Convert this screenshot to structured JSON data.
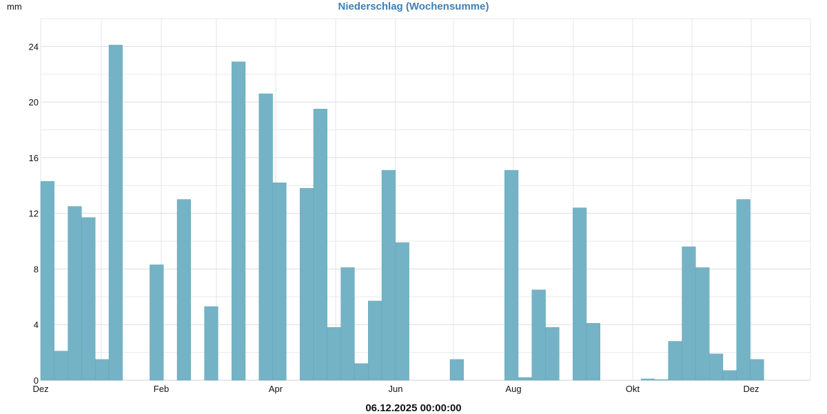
{
  "chart_data": {
    "type": "bar",
    "title": "Niederschlag (Wochensumme)",
    "ylabel": "mm",
    "xlabel": "06.12.2025 00:00:00",
    "ylim": [
      0,
      26
    ],
    "yticks": [
      0,
      4,
      8,
      12,
      16,
      20,
      24
    ],
    "xtick_labels": [
      "Dez",
      "Feb",
      "Apr",
      "Jun",
      "Aug",
      "Okt",
      "Dez"
    ],
    "grid": true,
    "bar_color": "#74b3c5",
    "series": [
      {
        "values": [
          14.3,
          2.1,
          12.5,
          11.7,
          1.5,
          24.1,
          0.0,
          0.0,
          8.3,
          0.0,
          13.0,
          0.0,
          5.3,
          0.0,
          22.9,
          0.0,
          20.6,
          14.2,
          0.0,
          13.8,
          19.5,
          3.8,
          8.1,
          1.2,
          5.7,
          15.1,
          9.9,
          0.0,
          0.0,
          0.0,
          1.5,
          0.0,
          0.0,
          0.0,
          15.1,
          0.2,
          6.5,
          3.8,
          0.0,
          12.4,
          4.1,
          0.0,
          0.0,
          0.0,
          0.1,
          0.05,
          2.8,
          9.6,
          8.1,
          1.9,
          0.7,
          13.0,
          1.5
        ]
      }
    ]
  }
}
